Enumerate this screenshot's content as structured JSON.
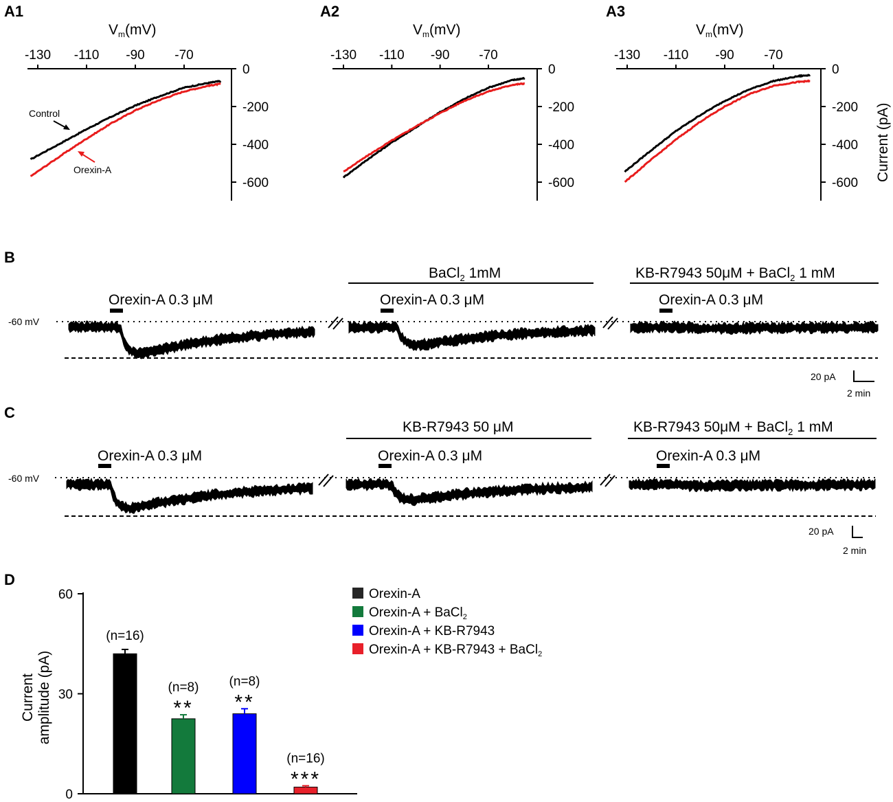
{
  "panels": {
    "A1": "A1",
    "A2": "A2",
    "A3": "A3",
    "B": "B",
    "C": "C",
    "D": "D"
  },
  "iv_axes": {
    "xlabel_main": "V",
    "xlabel_sub": "m",
    "xlabel_unit": "(mV)",
    "xticks": [
      -130,
      -110,
      -90,
      -70
    ],
    "yticks": [
      0,
      -200,
      -400,
      -600
    ],
    "ylabel": "Current (pA)"
  },
  "iv_plots": [
    {
      "id": "A1",
      "control": [
        [
          -133,
          -480
        ],
        [
          -120,
          -390
        ],
        [
          -110,
          -320
        ],
        [
          -100,
          -255
        ],
        [
          -90,
          -195
        ],
        [
          -80,
          -145
        ],
        [
          -70,
          -100
        ],
        [
          -60,
          -75
        ],
        [
          -55,
          -65
        ]
      ],
      "orexin": [
        [
          -133,
          -570
        ],
        [
          -120,
          -455
        ],
        [
          -110,
          -370
        ],
        [
          -100,
          -290
        ],
        [
          -90,
          -220
        ],
        [
          -80,
          -165
        ],
        [
          -70,
          -120
        ],
        [
          -60,
          -90
        ],
        [
          -55,
          -80
        ]
      ],
      "labels": {
        "control": "Control",
        "orexin": "Orexin-A"
      }
    },
    {
      "id": "A2",
      "control": [
        [
          -130,
          -575
        ],
        [
          -120,
          -480
        ],
        [
          -110,
          -390
        ],
        [
          -100,
          -310
        ],
        [
          -90,
          -230
        ],
        [
          -80,
          -160
        ],
        [
          -70,
          -100
        ],
        [
          -60,
          -60
        ],
        [
          -55,
          -50
        ]
      ],
      "orexin": [
        [
          -130,
          -545
        ],
        [
          -120,
          -460
        ],
        [
          -110,
          -380
        ],
        [
          -100,
          -305
        ],
        [
          -90,
          -235
        ],
        [
          -80,
          -170
        ],
        [
          -70,
          -120
        ],
        [
          -60,
          -85
        ],
        [
          -55,
          -78
        ]
      ]
    },
    {
      "id": "A3",
      "control": [
        [
          -131,
          -545
        ],
        [
          -120,
          -430
        ],
        [
          -110,
          -330
        ],
        [
          -100,
          -245
        ],
        [
          -90,
          -170
        ],
        [
          -80,
          -110
        ],
        [
          -70,
          -65
        ],
        [
          -60,
          -40
        ],
        [
          -55,
          -33
        ]
      ],
      "orexin": [
        [
          -131,
          -600
        ],
        [
          -120,
          -480
        ],
        [
          -110,
          -375
        ],
        [
          -100,
          -280
        ],
        [
          -90,
          -200
        ],
        [
          -80,
          -135
        ],
        [
          -70,
          -90
        ],
        [
          -60,
          -70
        ],
        [
          -55,
          -65
        ]
      ]
    }
  ],
  "trace_common": {
    "holding": "-60 mV",
    "drug": "Orexin-A 0.3 μM"
  },
  "panel_b": {
    "bath1": "BaCl",
    "bath1_sub": "2",
    "bath1_tail": " 1mM",
    "bath2": "KB-R7943 50μM + BaCl",
    "bath2_sub": "2",
    "bath2_tail": " 1 mM",
    "scale_y": "20 pA",
    "scale_x": "2 min",
    "peak_pA": [
      -38,
      -26,
      -2
    ]
  },
  "panel_c": {
    "bath1": "KB-R7943 50 μM",
    "bath2": "KB-R7943 50μM + BaCl",
    "bath2_sub": "2",
    "bath2_tail": " 1 mM",
    "scale_y": "20 pA",
    "scale_x": "2 min",
    "peak_pA": [
      -34,
      -22,
      -2
    ]
  },
  "chart_data": {
    "type": "bar",
    "categories": [
      "Orexin-A",
      "Orexin-A + BaCl2",
      "Orexin-A + KB-R7943",
      "Orexin-A + KB-R7943 + BaCl2"
    ],
    "values": [
      42,
      22.5,
      24,
      2
    ],
    "errors": [
      1.3,
      1.2,
      1.5,
      0.4
    ],
    "colors": [
      "#000000",
      "#137a3c",
      "#0000ff",
      "#e8202a"
    ],
    "n_labels": [
      "(n=16)",
      "(n=8)",
      "(n=8)",
      "(n=16)"
    ],
    "significance": [
      "",
      "**",
      "**",
      "***"
    ],
    "ylabel_line1": "Current",
    "ylabel_line2": "amplitude (pA)",
    "yticks": [
      0,
      30,
      60
    ],
    "ylim": [
      0,
      60
    ],
    "legend": [
      {
        "text": "Orexin-A",
        "sub": "",
        "color": "#262626"
      },
      {
        "text": "Orexin-A + BaCl",
        "sub": "2",
        "color": "#137a3c"
      },
      {
        "text": "Orexin-A + KB-R7943",
        "sub": "",
        "color": "#0000ff"
      },
      {
        "text": "Orexin-A + KB-R7943 + BaCl",
        "sub": "2",
        "color": "#e8202a"
      }
    ]
  }
}
